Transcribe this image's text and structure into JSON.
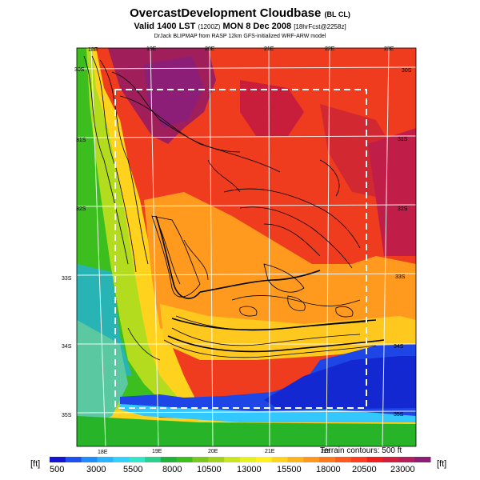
{
  "header": {
    "title": "OvercastDevelopment Cloudbase",
    "title_suffix": "(BL CL)",
    "valid_prefix": "Valid 1400 LST",
    "valid_utc": "(1200Z)",
    "valid_date": "MON 8 Dec 2008",
    "forecast": "[18hrFcst@2258z]",
    "credit": "DrJack BLIPMAP from RASP 12km GFS-initialized WRF-ARW model"
  },
  "map": {
    "lon_labels_top": [
      "18E",
      "19E",
      "20E",
      "21E",
      "22E",
      "23E"
    ],
    "lon_labels_bottom": [
      "18E",
      "19E",
      "20E",
      "21E",
      "22E"
    ],
    "lat_labels_left": [
      "30S",
      "31S",
      "32S",
      "33S",
      "34S",
      "35S"
    ],
    "lat_labels_right": [
      "30S",
      "31S",
      "32S",
      "33S",
      "34S",
      "35S"
    ]
  },
  "footer": {
    "terrain_note": "Terrain contours: 500 ft",
    "unit_left": "[ft]",
    "unit_right": "[ft]",
    "scale_labels": [
      "500",
      "3000",
      "5500",
      "8000",
      "10500",
      "13000",
      "15500",
      "18000",
      "20500",
      "23000"
    ],
    "scale_colors": [
      "#1414d2",
      "#1e50f0",
      "#1e8cff",
      "#28b4ff",
      "#32d2ff",
      "#32e6c8",
      "#28d28c",
      "#1eb43c",
      "#3cbe1e",
      "#78c81e",
      "#a0d21e",
      "#c8e61e",
      "#e6f01e",
      "#fff01e",
      "#ffd21e",
      "#ffb41e",
      "#ff961e",
      "#ff781e",
      "#ff5a1e",
      "#ff3c1e",
      "#f01e1e",
      "#d21e3c",
      "#b41e5a",
      "#8c1e78"
    ]
  }
}
